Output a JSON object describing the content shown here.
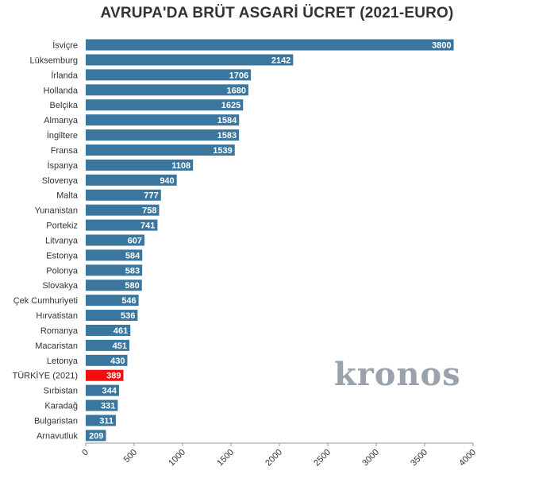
{
  "chart_data": {
    "type": "bar",
    "orientation": "horizontal",
    "title": "AVRUPA'DA BRÜT ASGARİ ÜCRET (2021-EURO)",
    "xlabel": "",
    "ylabel": "",
    "xlim": [
      0,
      4000
    ],
    "xticks": [
      0,
      500,
      1000,
      1500,
      2000,
      2500,
      3000,
      3500,
      4000
    ],
    "grid": false,
    "categories": [
      "İsviçre",
      "Lüksemburg",
      "İrlanda",
      "Hollanda",
      "Belçika",
      "Almanya",
      "İngiltere",
      "Fransa",
      "İspanya",
      "Slovenya",
      "Malta",
      "Yunanistan",
      "Portekiz",
      "Litvanya",
      "Estonya",
      "Polonya",
      "Slovakya",
      "Çek Cumhuriyeti",
      "Hırvatistan",
      "Romanya",
      "Macaristan",
      "Letonya",
      "TÜRKİYE (2021)",
      "Sırbistan",
      "Karadağ",
      "Bulgaristan",
      "Arnavutluk"
    ],
    "values": [
      3800,
      2142,
      1706,
      1680,
      1625,
      1584,
      1583,
      1539,
      1108,
      940,
      777,
      758,
      741,
      607,
      584,
      583,
      580,
      546,
      536,
      461,
      451,
      430,
      389,
      344,
      331,
      311,
      209
    ],
    "highlight_category": "TÜRKİYE (2021)",
    "colors": {
      "bar": "#3a769e",
      "highlight": "#f20f0f",
      "label": "#ffffff",
      "text": "#333333",
      "axis": "#999999"
    }
  },
  "watermark": {
    "text": "kronos"
  }
}
